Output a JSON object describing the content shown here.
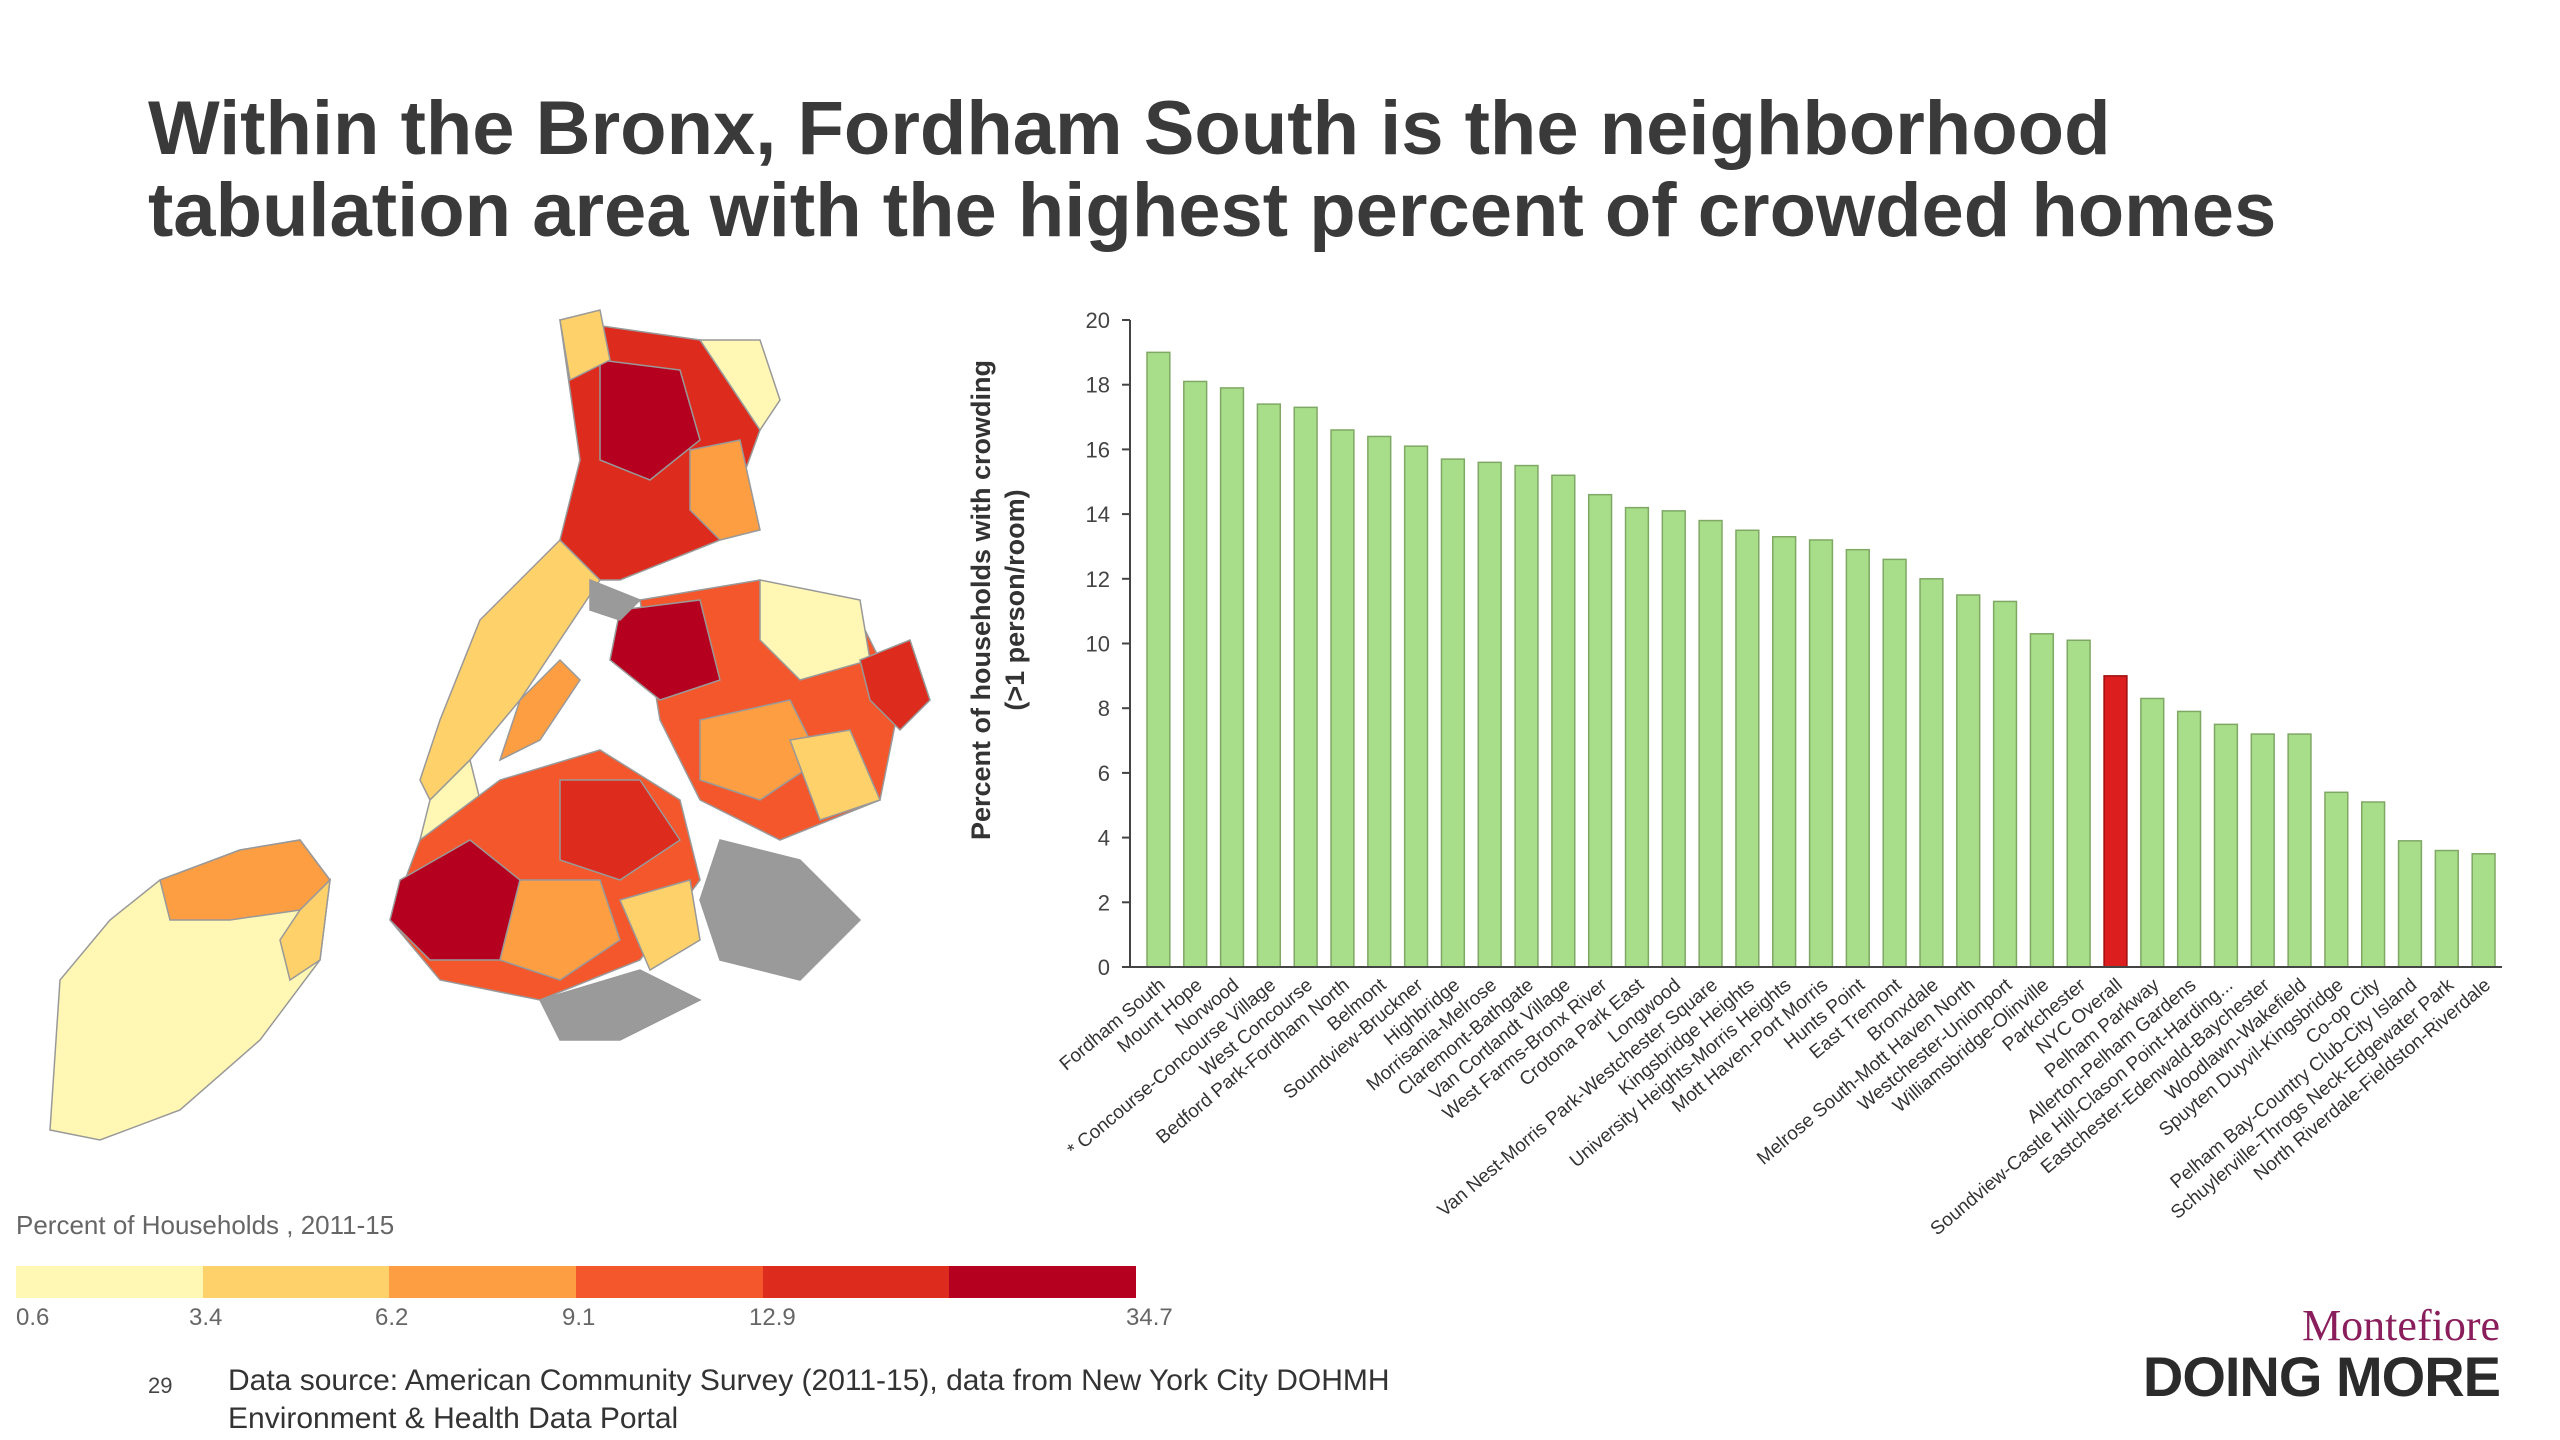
{
  "title": {
    "line1": "Within the Bronx, Fordham South is the neighborhood",
    "line2": "tabulation area with the highest percent of crowded homes"
  },
  "legend": {
    "title": "Percent of Households , 2011-15",
    "colors": [
      "#fff7b3",
      "#fed16a",
      "#fd9e43",
      "#f3572b",
      "#dd2b1e",
      "#b5001f"
    ],
    "breaks": [
      "0.6",
      "3.4",
      "6.2",
      "9.1",
      "12.9",
      "34.7"
    ]
  },
  "map": {
    "borough_outline_color": "#999999"
  },
  "chart_data": {
    "type": "bar",
    "ylabel_line1": "Percent of households with crowding",
    "ylabel_line2": "(>1 person/room)",
    "ylim": [
      0,
      20
    ],
    "yticks": [
      "0",
      "2",
      "4",
      "6",
      "8",
      "10",
      "12",
      "14",
      "16",
      "18",
      "20"
    ],
    "bar_color": "#a8dd8a",
    "highlight_color": "#dd1e1e",
    "highlight_category": "NYC Overall",
    "categories": [
      "Fordham South",
      "Mount Hope",
      "Norwood",
      "* Concourse-Concourse Village",
      "West Concourse",
      "Bedford Park-Fordham North",
      "Belmont",
      "Soundview-Bruckner",
      "Highbridge",
      "Morrisania-Melrose",
      "Claremont-Bathgate",
      "Van Cortlandt Village",
      "West Farms-Bronx River",
      "Crotona Park East",
      "Longwood",
      "Van Nest-Morris Park-Westchester Square",
      "Kingsbridge Heights",
      "University Heights-Morris Heights",
      "Mott Haven-Port Morris",
      "Hunts Point",
      "East Tremont",
      "Bronxdale",
      "Melrose South-Mott Haven North",
      "Westchester-Unionport",
      "Williamsbridge-Olinville",
      "Parkchester",
      "NYC Overall",
      "Pelham Parkway",
      "Allerton-Pelham Gardens",
      "Soundview-Castle Hill-Clason Point-Harding...",
      "Eastchester-Edenwald-Baychester",
      "Woodlawn-Wakefield",
      "Spuyten Duyvil-Kingsbridge",
      "Co-op City",
      "Pelham Bay-Country Club-City Island",
      "Schuylerville-Throgs Neck-Edgewater Park",
      "North Riverdale-Fieldston-Riverdale"
    ],
    "values": [
      19.0,
      18.1,
      17.9,
      17.4,
      17.3,
      16.6,
      16.4,
      16.1,
      15.7,
      15.6,
      15.5,
      15.2,
      14.6,
      14.2,
      14.1,
      13.8,
      13.5,
      13.3,
      13.2,
      12.9,
      12.6,
      12.0,
      11.5,
      11.3,
      10.3,
      10.1,
      9.0,
      8.3,
      7.9,
      7.5,
      7.2,
      7.2,
      5.4,
      5.1,
      3.9,
      3.6,
      3.5
    ]
  },
  "footer": {
    "page_number": "29",
    "source_line1": "Data source: American Community Survey (2011-15), data from New York City DOHMH",
    "source_line2": "Environment & Health Data Portal",
    "logo_top": "Montefiore",
    "logo_bottom": "DOING MORE"
  }
}
